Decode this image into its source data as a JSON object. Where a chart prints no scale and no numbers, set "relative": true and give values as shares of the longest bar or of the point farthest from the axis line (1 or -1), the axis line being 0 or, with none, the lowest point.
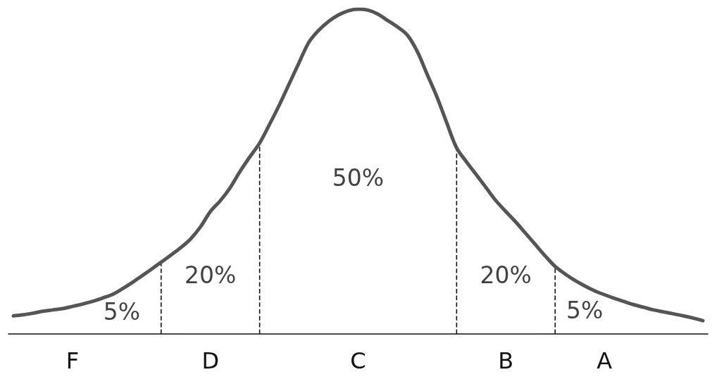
{
  "chart_data": {
    "type": "line",
    "relative": true,
    "categories": [
      null,
      null,
      null,
      null,
      null,
      null,
      "F",
      null,
      null,
      null,
      null,
      null,
      null,
      null,
      null,
      null,
      null,
      null,
      null,
      null,
      "D",
      null,
      null,
      null,
      null,
      null,
      null,
      null,
      null,
      null,
      null,
      null,
      null,
      null,
      null,
      "C",
      null,
      null,
      null,
      null,
      null,
      null,
      null,
      null,
      null,
      null,
      null,
      null,
      null,
      null,
      "B",
      null,
      null,
      null,
      null,
      null,
      null,
      null,
      null,
      null,
      "A",
      null,
      null,
      null,
      null,
      null,
      null,
      null,
      null,
      null,
      null
    ],
    "series": [
      {
        "color": "#555555",
        "values": [
          0.056,
          0.059,
          0.064,
          0.07,
          0.074,
          0.078,
          0.085,
          0.092,
          0.1,
          0.11,
          0.121,
          0.138,
          0.157,
          0.178,
          0.199,
          0.221,
          0.243,
          0.266,
          0.293,
          0.33,
          0.377,
          0.41,
          0.45,
          0.5,
          0.545,
          0.588,
          0.645,
          0.705,
          0.77,
          0.835,
          0.898,
          0.935,
          0.962,
          0.982,
          0.995,
          1,
          0.997,
          0.985,
          0.965,
          0.945,
          0.92,
          0.87,
          0.8,
          0.73,
          0.65,
          0.573,
          0.53,
          0.49,
          0.45,
          0.41,
          0.377,
          0.345,
          0.31,
          0.275,
          0.24,
          0.208,
          0.185,
          0.165,
          0.148,
          0.133,
          0.121,
          0.11,
          0.1,
          0.09,
          0.082,
          0.074,
          0.068,
          0.062,
          0.056,
          0.049,
          0.041
        ]
      }
    ],
    "annotations": [
      "5%",
      "20%",
      "50%",
      "20%",
      "5%"
    ],
    "grid": false,
    "marker": "none",
    "line_style": "solid"
  }
}
